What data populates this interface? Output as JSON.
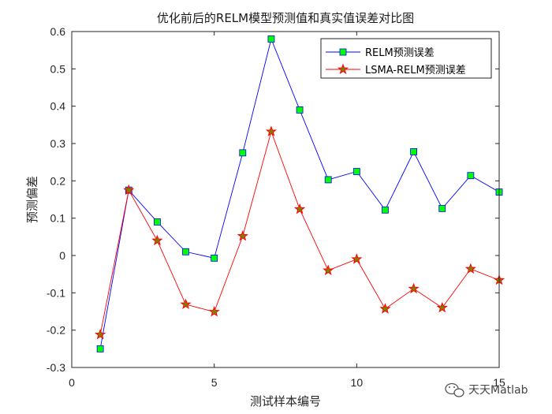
{
  "chart_data": {
    "type": "line",
    "title": "优化前后的RELM模型预测值和真实值误差对比图",
    "xlabel": "测试样本编号",
    "ylabel": "预测偏差",
    "xlim": [
      0,
      15
    ],
    "ylim": [
      -0.3,
      0.6
    ],
    "xticks": [
      0,
      5,
      10,
      15
    ],
    "yticks": [
      -0.3,
      -0.2,
      -0.1,
      0,
      0.1,
      0.2,
      0.3,
      0.4,
      0.5,
      0.6
    ],
    "grid": false,
    "legend_position": "top-right",
    "x": [
      1,
      2,
      3,
      4,
      5,
      6,
      7,
      8,
      9,
      10,
      11,
      12,
      13,
      14,
      15
    ],
    "series": [
      {
        "name": "RELM预测误差",
        "color": "#0000ff",
        "marker": "square",
        "marker_fill": "#00ff00",
        "values": [
          -0.25,
          0.175,
          0.09,
          0.01,
          -0.007,
          0.275,
          0.58,
          0.39,
          0.203,
          0.225,
          0.122,
          0.278,
          0.126,
          0.214,
          0.17
        ]
      },
      {
        "name": "LSMA-RELM预测误差",
        "color": "#ff0000",
        "marker": "star",
        "marker_fill": "#808000",
        "values": [
          -0.212,
          0.175,
          0.04,
          -0.131,
          -0.151,
          0.052,
          0.332,
          0.124,
          -0.04,
          -0.01,
          -0.143,
          -0.089,
          -0.14,
          -0.036,
          -0.066
        ]
      }
    ]
  },
  "watermark": {
    "text": "天天Matlab",
    "icon": "wechat-icon"
  }
}
